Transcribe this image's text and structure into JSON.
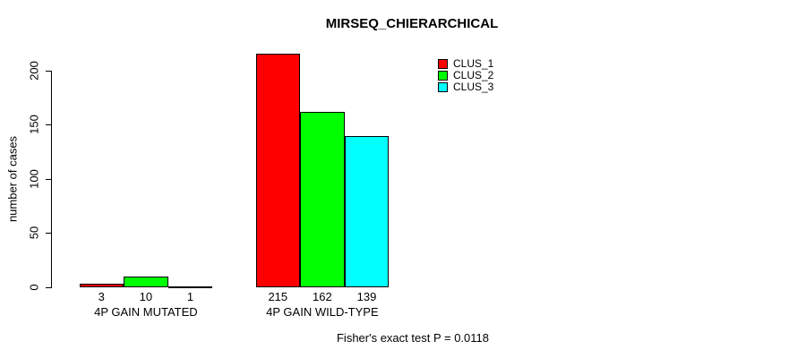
{
  "figure": {
    "background": "#ffffff",
    "text_color": "#000000"
  },
  "chart_data": {
    "type": "bar",
    "grouped": true,
    "title": "MIRSEQ_CHIERARCHICAL",
    "xlabel": "",
    "ylabel": "number of cases",
    "categories": [
      "4P GAIN MUTATED",
      "4P GAIN WILD-TYPE"
    ],
    "series": [
      {
        "name": "CLUS_1",
        "color": "#ff0000",
        "values": [
          3,
          215
        ]
      },
      {
        "name": "CLUS_2",
        "color": "#00ff00",
        "values": [
          10,
          162
        ]
      },
      {
        "name": "CLUS_3",
        "color": "#00ffff",
        "values": [
          1,
          139
        ]
      }
    ],
    "bar_value_labels": [
      [
        "3",
        "10",
        "1"
      ],
      [
        "215",
        "162",
        "139"
      ]
    ],
    "ylim": [
      0,
      200
    ],
    "yticks": [
      0,
      50,
      100,
      150,
      200
    ],
    "grid": false,
    "legend_position": "top-right",
    "annotation": "Fisher's exact test P = 0.0118"
  }
}
